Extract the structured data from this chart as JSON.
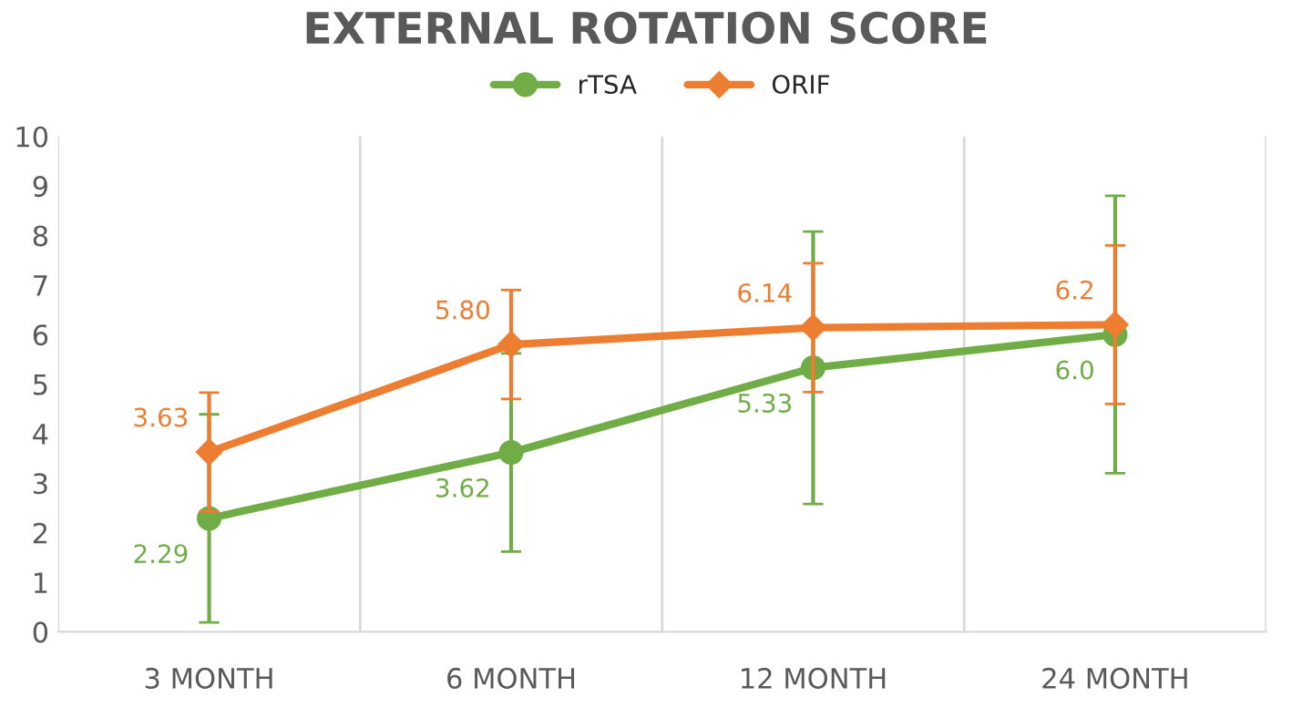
{
  "chart_data": {
    "type": "line",
    "title": "EXTERNAL ROTATION SCORE",
    "categories": [
      "3 MONTH",
      "6 MONTH",
      "12 MONTH",
      "24 MONTH"
    ],
    "series": [
      {
        "name": "rTSA",
        "color": "#70ad47",
        "marker": "circle",
        "values": [
          2.29,
          3.62,
          5.33,
          6.0
        ],
        "errors": [
          2.1,
          2.0,
          2.75,
          2.8
        ],
        "value_labels": [
          "2.29",
          "3.62",
          "5.33",
          "6.0"
        ]
      },
      {
        "name": "ORIF",
        "color": "#ed7d31",
        "marker": "diamond",
        "values": [
          3.63,
          5.8,
          6.14,
          6.2
        ],
        "errors": [
          1.2,
          1.1,
          1.3,
          1.6
        ],
        "value_labels": [
          "3.63",
          "5.80",
          "6.14",
          "6.2"
        ]
      }
    ],
    "ylim": [
      0,
      10
    ],
    "yticks": [
      0,
      1,
      2,
      3,
      4,
      5,
      6,
      7,
      8,
      9,
      10
    ],
    "grid": "x",
    "legend": "top",
    "line_style": "solid"
  }
}
